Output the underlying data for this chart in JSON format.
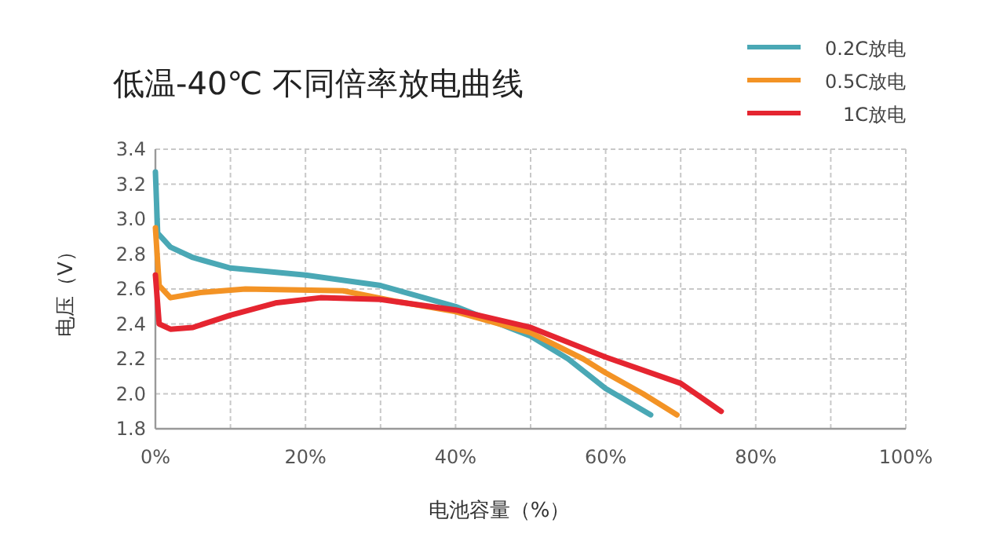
{
  "chart_data": {
    "type": "line",
    "title": "低温-40℃ 不同倍率放电曲线",
    "xlabel": "电池容量（%）",
    "ylabel": "电压（V）",
    "xlim": [
      0,
      100
    ],
    "xticks": [
      {
        "value": 0,
        "label": "0%"
      },
      {
        "value": 10,
        "label": null
      },
      {
        "value": 20,
        "label": "20%"
      },
      {
        "value": 30,
        "label": null
      },
      {
        "value": 40,
        "label": "40%"
      },
      {
        "value": 50,
        "label": null
      },
      {
        "value": 60,
        "label": "60%"
      },
      {
        "value": 70,
        "label": null
      },
      {
        "value": 80,
        "label": "80%"
      },
      {
        "value": 90,
        "label": null
      },
      {
        "value": 100,
        "label": "100%"
      }
    ],
    "ylim": [
      1.8,
      3.4
    ],
    "yticks": [
      1.8,
      {
        "value": 2.0,
        "label": "2.0"
      },
      2.2,
      2.4,
      2.6,
      2.8,
      {
        "value": 3.0,
        "label": "3.0"
      },
      3.2,
      3.4
    ],
    "grid": true,
    "legend": "top right",
    "line_style": "solid",
    "marker": "none",
    "series": [
      {
        "name": "0.2C放电",
        "color": "#4aa8b5",
        "x": [
          0,
          0.3,
          2,
          5,
          10,
          20,
          30,
          40,
          50,
          55,
          60,
          66
        ],
        "values": [
          3.27,
          2.92,
          2.84,
          2.78,
          2.72,
          2.68,
          2.62,
          2.5,
          2.33,
          2.2,
          2.03,
          1.88
        ]
      },
      {
        "name": "0.5C放电",
        "color": "#f39325",
        "x": [
          0,
          0.5,
          2,
          6,
          12,
          25,
          32,
          40,
          50,
          57,
          60,
          65,
          69.5
        ],
        "values": [
          2.95,
          2.62,
          2.55,
          2.58,
          2.6,
          2.59,
          2.53,
          2.47,
          2.35,
          2.2,
          2.12,
          2.0,
          1.88
        ]
      },
      {
        "name": "1C放电",
        "color": "#e52530",
        "x": [
          0,
          0.5,
          2,
          5,
          10,
          16,
          22,
          30,
          40,
          50,
          60,
          70,
          75.4
        ],
        "values": [
          2.68,
          2.4,
          2.37,
          2.38,
          2.45,
          2.52,
          2.55,
          2.54,
          2.48,
          2.38,
          2.21,
          2.06,
          1.9
        ]
      }
    ]
  }
}
